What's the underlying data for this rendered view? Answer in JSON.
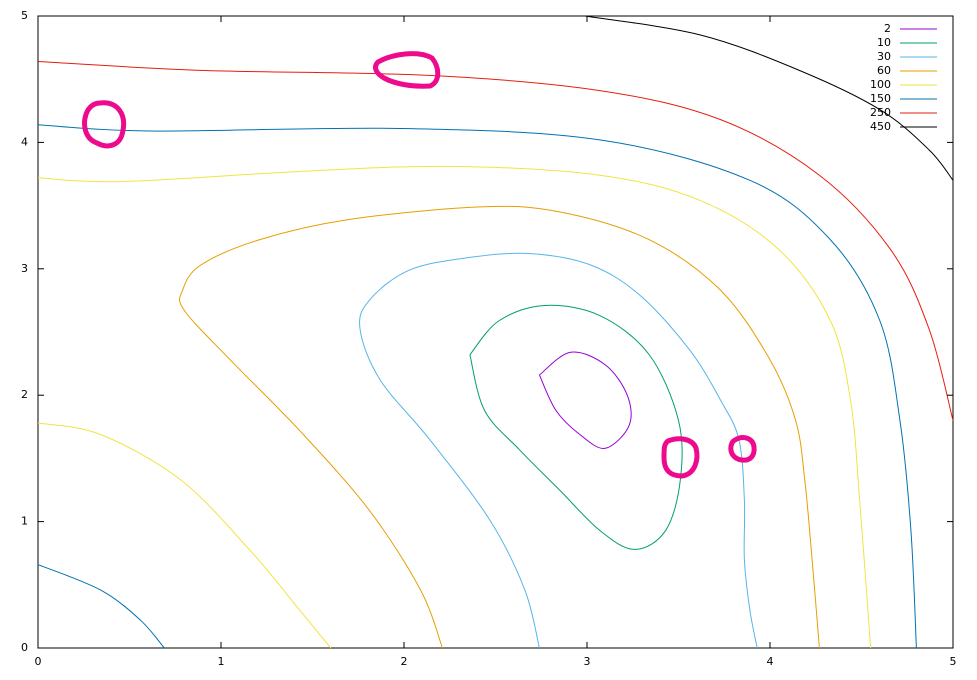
{
  "chart_data": {
    "type": "contour",
    "xlim": [
      0,
      5
    ],
    "ylim": [
      0,
      5
    ],
    "xticks": [
      0,
      1,
      2,
      3,
      4,
      5
    ],
    "yticks": [
      0,
      1,
      2,
      3,
      4,
      5
    ],
    "legend": "top-right",
    "series": [
      {
        "name": "2",
        "color": "#9400d3",
        "x": [
          2.74,
          2.91,
          3.1,
          3.22,
          3.23,
          3.1,
          2.96,
          2.83,
          2.74
        ],
        "y": [
          2.16,
          2.34,
          2.24,
          2.0,
          1.76,
          1.58,
          1.69,
          1.88,
          2.16
        ]
      },
      {
        "name": "10",
        "color": "#009e73",
        "x": [
          2.36,
          2.52,
          2.77,
          3.07,
          3.34,
          3.5,
          3.51,
          3.43,
          3.26,
          3.07,
          2.85,
          2.63,
          2.44,
          2.36
        ],
        "y": [
          2.32,
          2.59,
          2.71,
          2.63,
          2.32,
          1.8,
          1.33,
          0.93,
          0.78,
          0.93,
          1.25,
          1.57,
          1.88,
          2.32
        ]
      },
      {
        "name": "30",
        "color": "#56b4e9",
        "x": [
          2.74,
          2.66,
          2.47,
          2.14,
          1.87,
          1.76,
          1.81,
          2.03,
          2.36,
          2.69,
          3.02,
          3.29,
          3.56,
          3.73,
          3.83,
          3.86,
          3.86,
          3.89,
          3.93
        ],
        "y": [
          0,
          0.46,
          1.01,
          1.65,
          2.12,
          2.52,
          2.75,
          2.99,
          3.09,
          3.12,
          3.03,
          2.79,
          2.36,
          1.96,
          1.65,
          1.17,
          0.7,
          0.3,
          0
        ]
      },
      {
        "name": "60",
        "color": "#e69f00",
        "x": [
          2.21,
          2.09,
          1.81,
          1.43,
          1.05,
          0.8,
          0.79,
          0.89,
          1.21,
          1.7,
          2.42,
          2.85,
          3.34,
          3.73,
          4.0,
          4.14,
          4.19,
          4.23,
          4.27
        ],
        "y": [
          0,
          0.46,
          1.09,
          1.72,
          2.28,
          2.67,
          2.83,
          3.03,
          3.23,
          3.39,
          3.49,
          3.45,
          3.23,
          2.83,
          2.28,
          1.8,
          1.33,
          0.7,
          0
        ]
      },
      {
        "name": "100",
        "color": "#f0e442",
        "x": [
          0,
          0.34,
          0.78,
          1.16,
          1.43,
          1.6,
          null,
          0,
          0.45,
          1.43,
          2.25,
          3.07,
          3.62,
          4.05,
          4.33,
          4.44,
          4.49,
          4.55
        ],
        "y": [
          1.78,
          1.69,
          1.33,
          0.77,
          0.3,
          0,
          null,
          3.72,
          3.69,
          3.77,
          3.81,
          3.74,
          3.54,
          3.15,
          2.59,
          1.96,
          1.17,
          0
        ]
      },
      {
        "name": "150",
        "color": "#0072b2",
        "x": [
          0,
          0.34,
          0.56,
          0.69,
          null,
          0,
          0.61,
          1.98,
          3.07,
          3.89,
          4.33,
          4.6,
          4.71,
          4.77,
          4.8
        ],
        "y": [
          0.66,
          0.46,
          0.22,
          0,
          null,
          4.14,
          4.09,
          4.11,
          4.02,
          3.7,
          3.23,
          2.59,
          1.8,
          0.93,
          0
        ]
      },
      {
        "name": "250",
        "color": "#e51e10",
        "x": [
          0,
          0.89,
          2.14,
          3.07,
          3.73,
          4.27,
          4.66,
          4.87,
          5.0
        ],
        "y": [
          4.64,
          4.57,
          4.53,
          4.41,
          4.18,
          3.74,
          3.15,
          2.52,
          1.8
        ]
      },
      {
        "name": "450",
        "color": "#000000",
        "x": [
          2.99,
          3.62,
          4.16,
          4.6,
          4.87,
          5.0
        ],
        "y": [
          5,
          4.85,
          4.57,
          4.26,
          3.94,
          3.7
        ]
      }
    ]
  }
}
